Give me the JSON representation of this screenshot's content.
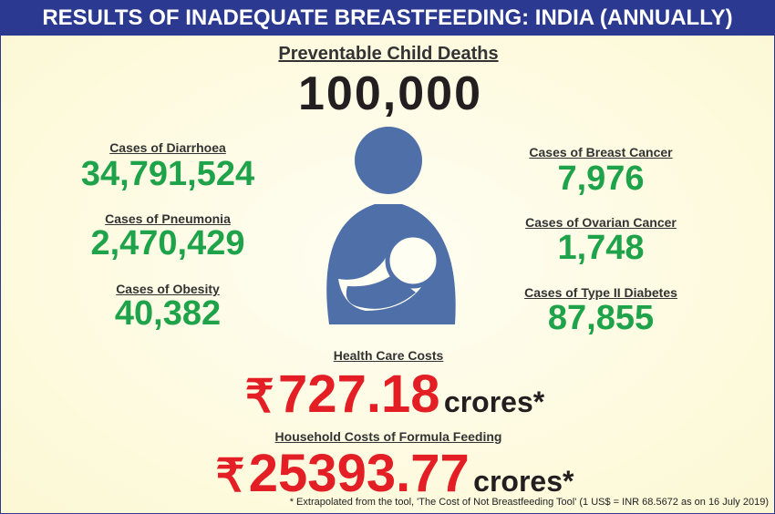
{
  "header": {
    "title": "RESULTS OF INADEQUATE BREASTFEEDING: INDIA (ANNUALLY)"
  },
  "headline": {
    "label": "Preventable Child Deaths",
    "value": "100,000"
  },
  "left_stats": [
    {
      "label": "Cases of Diarrhoea",
      "value": "34,791,524"
    },
    {
      "label": "Cases of Pneumonia",
      "value": "2,470,429"
    },
    {
      "label": "Cases of Obesity",
      "value": "40,382"
    }
  ],
  "right_stats": [
    {
      "label": "Cases of Breast Cancer",
      "value": "7,976"
    },
    {
      "label": "Cases of Ovarian Cancer",
      "value": "1,748"
    },
    {
      "label": "Cases of Type II Diabetes",
      "value": "87,855"
    }
  ],
  "costs": [
    {
      "label": "Health Care Costs",
      "currency": "₹",
      "amount": "727.18",
      "unit": "crores*"
    },
    {
      "label": "Household Costs of Formula Feeding",
      "currency": "₹",
      "amount": "25393.77",
      "unit": "crores*"
    }
  ],
  "footnote": "* Extrapolated from the tool, 'The Cost of Not Breastfeeding Tool' (1 US$ = INR 68.5672 as on 16 July 2019)"
}
